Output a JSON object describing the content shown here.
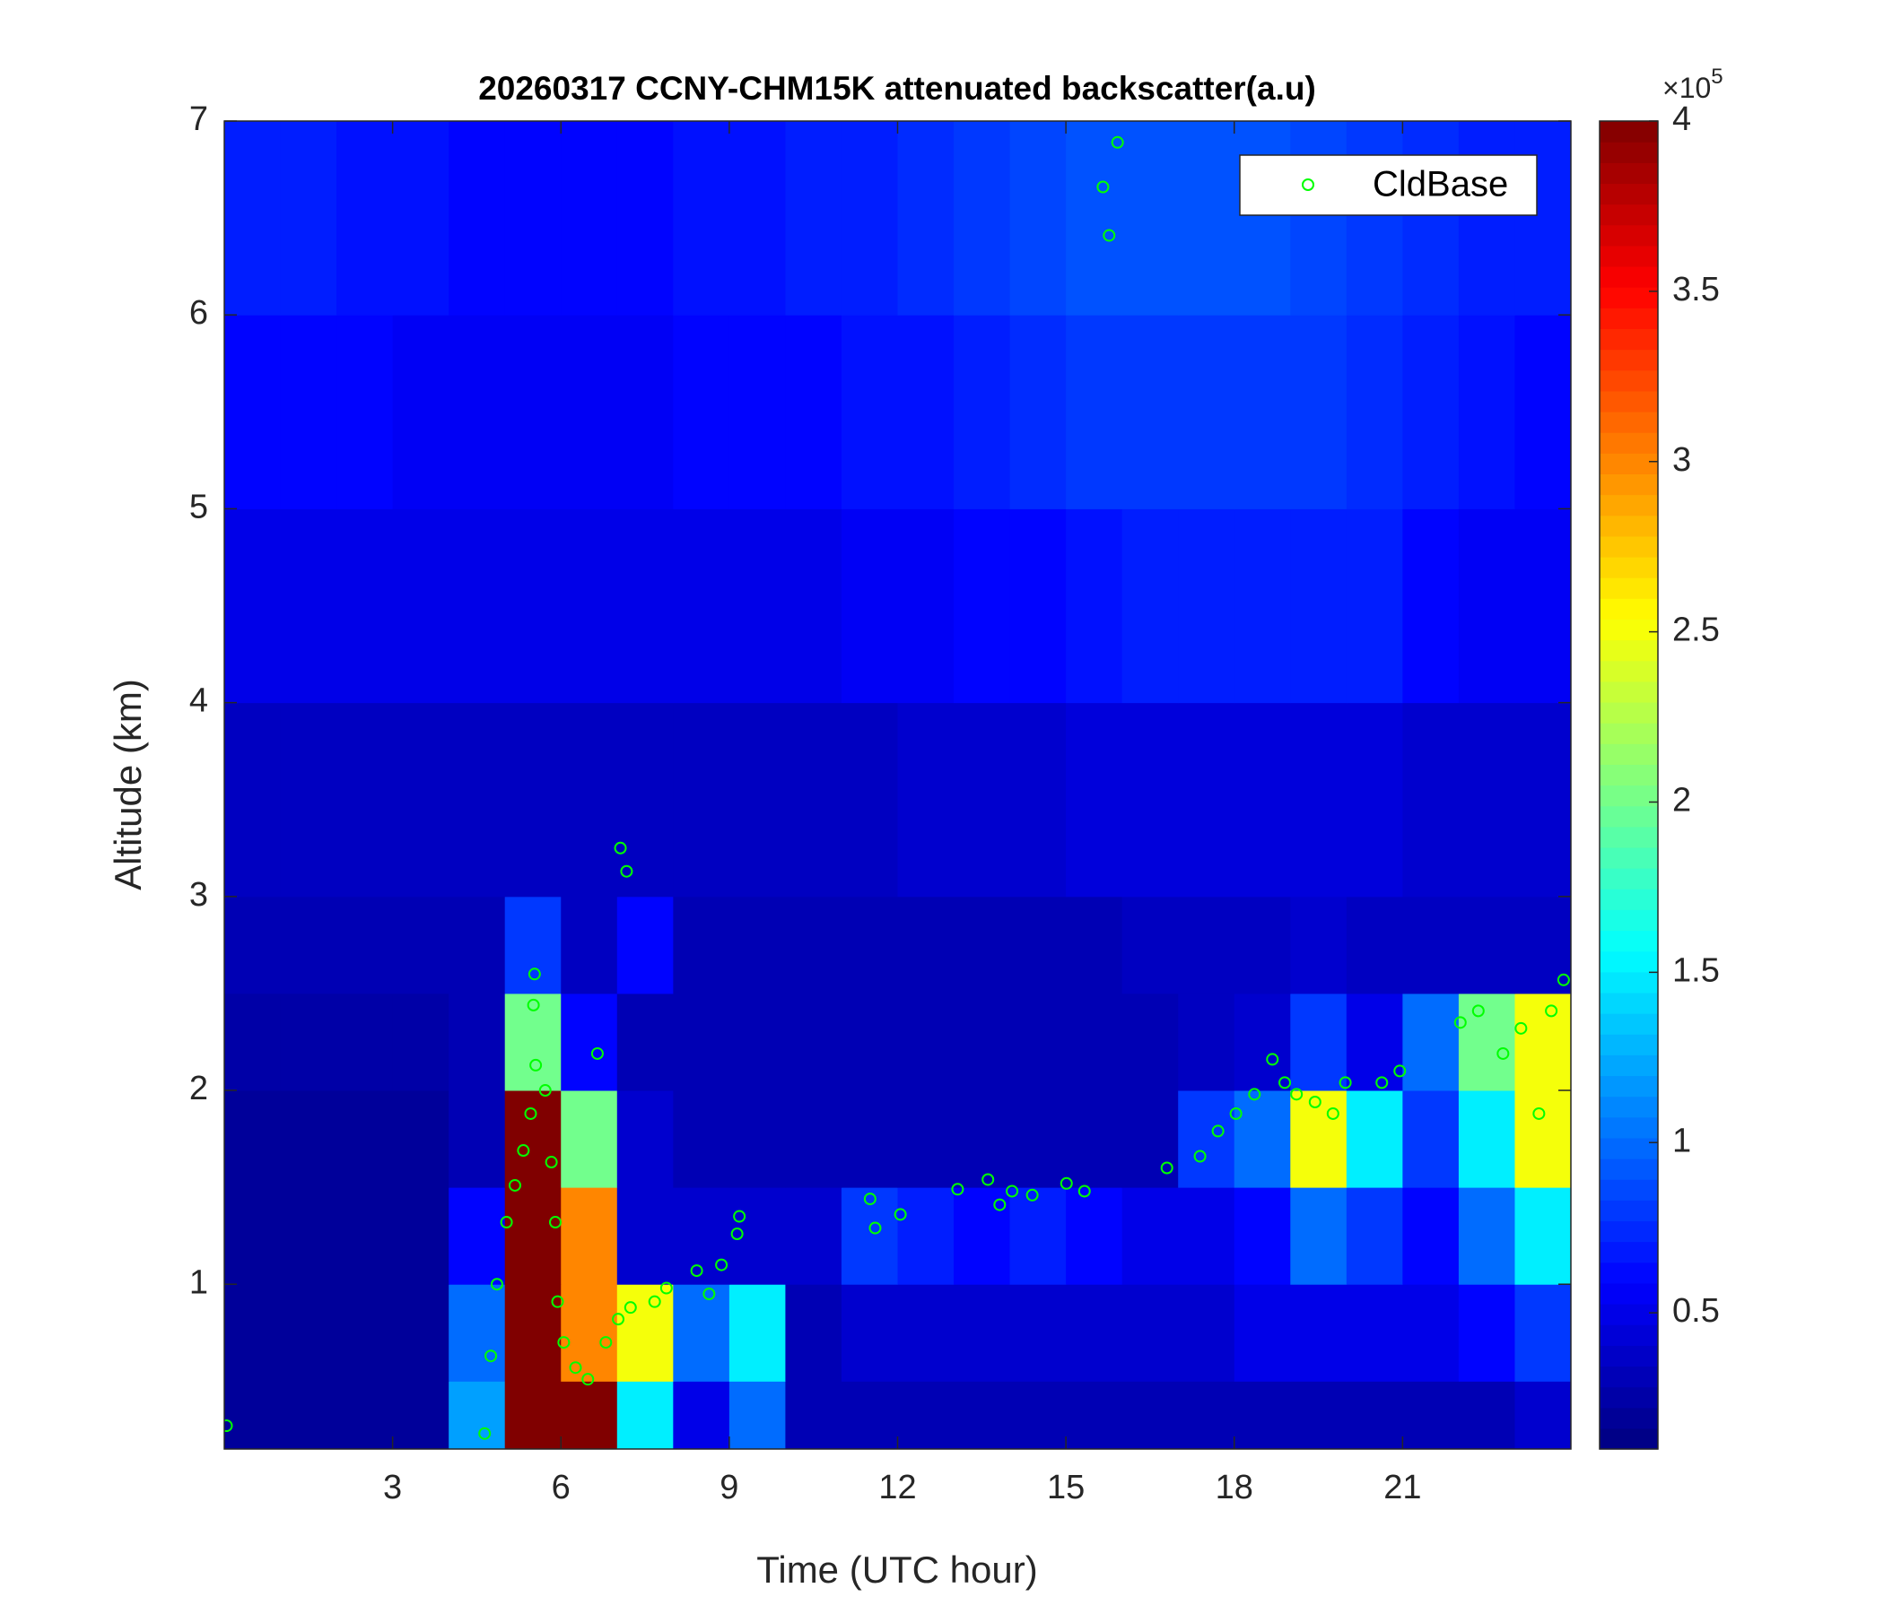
{
  "chart_data": {
    "type": "heatmap",
    "title": "20260317 CCNY-CHM15K attenuated backscatter(a.u)",
    "x_label": "Time (UTC hour)",
    "y_label": "Altitude (km)",
    "xlim": [
      0,
      24
    ],
    "xticks": [
      3,
      6,
      9,
      12,
      15,
      18,
      21
    ],
    "ylim": [
      0.15,
      7
    ],
    "yticks": [
      1,
      2,
      3,
      4,
      5,
      6,
      7
    ],
    "colormap": "jet",
    "colorbar": {
      "lim": [
        0.1,
        4
      ],
      "ticks": [
        0.5,
        1,
        1.5,
        2,
        2.5,
        3,
        3.5,
        4
      ],
      "scale_label": "×10",
      "scale_exponent": "5"
    },
    "x_edges": [
      0,
      1,
      2,
      3,
      4,
      5,
      6,
      7,
      8,
      9,
      10,
      11,
      12,
      13,
      14,
      15,
      16,
      17,
      18,
      19,
      20,
      21,
      22,
      23,
      24
    ],
    "y_edges": [
      0.15,
      0.5,
      1,
      1.5,
      2,
      2.5,
      3,
      4,
      5,
      6,
      7
    ],
    "z": [
      [
        0.2,
        0.2,
        0.2,
        0.2,
        1.2,
        4,
        4,
        1.5,
        0.5,
        1.0,
        0.3,
        0.3,
        0.3,
        0.3,
        0.3,
        0.3,
        0.3,
        0.3,
        0.3,
        0.3,
        0.3,
        0.3,
        0.3,
        0.4
      ],
      [
        0.2,
        0.2,
        0.2,
        0.2,
        1.0,
        4,
        3,
        2.5,
        1.0,
        1.5,
        0.3,
        0.4,
        0.4,
        0.4,
        0.4,
        0.4,
        0.4,
        0.4,
        0.5,
        0.5,
        0.5,
        0.5,
        0.6,
        0.8
      ],
      [
        0.2,
        0.2,
        0.2,
        0.2,
        0.6,
        4,
        3,
        0.4,
        0.4,
        0.4,
        0.4,
        0.8,
        0.7,
        0.6,
        0.7,
        0.6,
        0.5,
        0.5,
        0.6,
        1.0,
        0.8,
        0.6,
        1.0,
        1.5
      ],
      [
        0.2,
        0.2,
        0.2,
        0.2,
        0.3,
        4,
        2,
        0.4,
        0.3,
        0.3,
        0.3,
        0.3,
        0.3,
        0.3,
        0.3,
        0.3,
        0.3,
        0.8,
        1.0,
        2.5,
        1.5,
        0.8,
        1.5,
        2.5
      ],
      [
        0.25,
        0.25,
        0.25,
        0.25,
        0.3,
        2,
        0.6,
        0.3,
        0.3,
        0.3,
        0.3,
        0.3,
        0.3,
        0.3,
        0.3,
        0.3,
        0.3,
        0.35,
        0.4,
        0.8,
        0.5,
        1.0,
        2.0,
        2.5
      ],
      [
        0.3,
        0.3,
        0.3,
        0.3,
        0.3,
        0.8,
        0.35,
        0.6,
        0.3,
        0.3,
        0.3,
        0.3,
        0.3,
        0.3,
        0.3,
        0.3,
        0.35,
        0.35,
        0.35,
        0.4,
        0.35,
        0.35,
        0.35,
        0.35
      ],
      [
        0.35,
        0.35,
        0.35,
        0.35,
        0.35,
        0.35,
        0.35,
        0.35,
        0.35,
        0.35,
        0.35,
        0.35,
        0.4,
        0.4,
        0.4,
        0.45,
        0.45,
        0.45,
        0.45,
        0.45,
        0.45,
        0.4,
        0.4,
        0.4
      ],
      [
        0.5,
        0.5,
        0.5,
        0.5,
        0.5,
        0.5,
        0.5,
        0.5,
        0.5,
        0.5,
        0.5,
        0.55,
        0.55,
        0.6,
        0.6,
        0.65,
        0.7,
        0.7,
        0.7,
        0.7,
        0.7,
        0.6,
        0.55,
        0.55
      ],
      [
        0.6,
        0.6,
        0.6,
        0.55,
        0.55,
        0.55,
        0.55,
        0.55,
        0.6,
        0.6,
        0.6,
        0.65,
        0.65,
        0.7,
        0.75,
        0.8,
        0.8,
        0.8,
        0.8,
        0.8,
        0.75,
        0.7,
        0.65,
        0.6
      ],
      [
        0.7,
        0.7,
        0.65,
        0.65,
        0.6,
        0.6,
        0.6,
        0.6,
        0.65,
        0.65,
        0.7,
        0.7,
        0.75,
        0.8,
        0.85,
        0.9,
        0.9,
        0.9,
        0.9,
        0.85,
        0.8,
        0.75,
        0.7,
        0.7
      ]
    ],
    "legend": "upper right",
    "series": [
      {
        "name": "CldBase",
        "color": "#00ff00",
        "marker": "open-circle",
        "x": [
          0.04,
          4.64,
          4.75,
          4.86,
          5.03,
          5.18,
          5.33,
          5.46,
          5.55,
          5.51,
          5.53,
          5.72,
          5.83,
          5.9,
          5.94,
          6.05,
          6.26,
          6.48,
          6.8,
          7.02,
          7.24,
          6.65,
          7.06,
          7.17,
          7.67,
          7.88,
          8.42,
          8.64,
          8.86,
          9.14,
          9.18,
          11.51,
          11.6,
          12.05,
          13.07,
          13.61,
          13.82,
          14.04,
          14.4,
          15.01,
          15.33,
          15.66,
          15.77,
          15.92,
          16.8,
          17.39,
          17.71,
          18.03,
          18.36,
          18.68,
          18.9,
          19.11,
          19.44,
          19.76,
          19.98,
          20.63,
          20.95,
          22.03,
          22.35,
          22.79,
          23.11,
          23.43,
          23.65,
          23.87
        ],
        "y": [
          0.27,
          0.23,
          0.63,
          1.0,
          1.32,
          1.51,
          1.69,
          1.88,
          2.13,
          2.44,
          2.6,
          2.0,
          1.63,
          1.32,
          0.91,
          0.7,
          0.57,
          0.51,
          0.7,
          0.82,
          0.88,
          2.19,
          3.25,
          3.13,
          0.91,
          0.98,
          1.07,
          0.95,
          1.1,
          1.26,
          1.35,
          1.44,
          1.29,
          1.36,
          1.49,
          1.54,
          1.41,
          1.48,
          1.46,
          1.52,
          1.48,
          6.66,
          6.41,
          6.89,
          1.6,
          1.66,
          1.79,
          1.88,
          1.98,
          2.16,
          2.04,
          1.98,
          1.94,
          1.88,
          2.04,
          2.04,
          2.1,
          2.35,
          2.41,
          2.19,
          2.32,
          1.88,
          2.41,
          2.57
        ]
      }
    ]
  }
}
